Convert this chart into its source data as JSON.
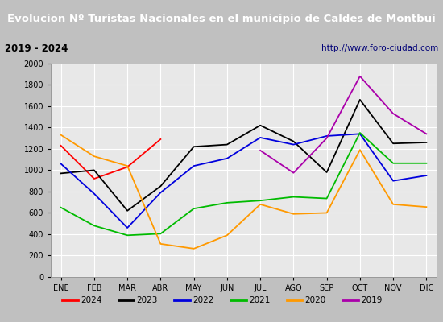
{
  "title": "Evolucion Nº Turistas Nacionales en el municipio de Caldes de Montbui",
  "subtitle_left": "2019 - 2024",
  "subtitle_right": "http://www.foro-ciudad.com",
  "months": [
    "ENE",
    "FEB",
    "MAR",
    "ABR",
    "MAY",
    "JUN",
    "JUL",
    "AGO",
    "SEP",
    "OCT",
    "NOV",
    "DIC"
  ],
  "series": {
    "2024": [
      1230,
      920,
      1030,
      1290,
      null,
      null,
      null,
      null,
      null,
      null,
      null,
      null
    ],
    "2023": [
      970,
      1000,
      620,
      850,
      1220,
      1240,
      1420,
      1270,
      980,
      1660,
      1250,
      1260
    ],
    "2022": [
      1060,
      780,
      460,
      790,
      1040,
      1110,
      1305,
      1240,
      1320,
      1340,
      900,
      950
    ],
    "2021": [
      650,
      480,
      390,
      405,
      640,
      695,
      715,
      750,
      735,
      1350,
      1065,
      1065
    ],
    "2020": [
      1330,
      1130,
      1040,
      310,
      265,
      390,
      680,
      590,
      600,
      1190,
      680,
      655
    ],
    "2019": [
      null,
      null,
      null,
      null,
      null,
      null,
      1185,
      975,
      1300,
      1880,
      1530,
      1340
    ]
  },
  "colors": {
    "2024": "#ff0000",
    "2023": "#000000",
    "2022": "#0000dd",
    "2021": "#00bb00",
    "2020": "#ff9900",
    "2019": "#aa00aa"
  },
  "ylim": [
    0,
    2000
  ],
  "yticks": [
    0,
    200,
    400,
    600,
    800,
    1000,
    1200,
    1400,
    1600,
    1800,
    2000
  ],
  "title_bg": "#4477cc",
  "title_color": "#ffffff",
  "plot_bg": "#e8e8e8",
  "grid_color": "#ffffff",
  "header_bg": "#e0e0e0",
  "outer_bg": "#c0c0c0",
  "legend_bg": "#f0f0f0"
}
